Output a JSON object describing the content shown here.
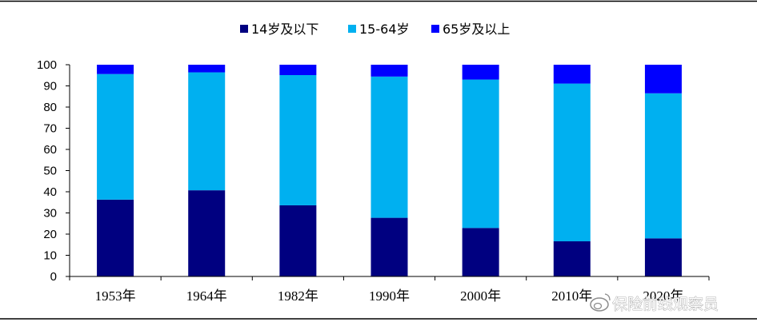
{
  "chart_data": {
    "type": "bar",
    "stacked": true,
    "categories": [
      "1953年",
      "1964年",
      "1982年",
      "1990年",
      "2000年",
      "2010年",
      "2020年"
    ],
    "series": [
      {
        "name": "14岁及以下",
        "color": "#000080",
        "values": [
          36.3,
          40.7,
          33.6,
          27.7,
          22.9,
          16.6,
          18.0
        ]
      },
      {
        "name": "15-64岁",
        "color": "#00B0F0",
        "values": [
          59.3,
          55.7,
          61.5,
          66.7,
          70.1,
          74.5,
          68.5
        ]
      },
      {
        "name": "65岁及以上",
        "color": "#0000FF",
        "values": [
          4.4,
          3.6,
          4.9,
          5.6,
          7.0,
          8.9,
          13.5
        ]
      }
    ],
    "ylim": [
      0,
      100
    ],
    "yticks": [
      0,
      10,
      20,
      30,
      40,
      50,
      60,
      70,
      80,
      90,
      100
    ],
    "grid": false,
    "legend": "top-center"
  },
  "watermark": "保险前线观察员"
}
